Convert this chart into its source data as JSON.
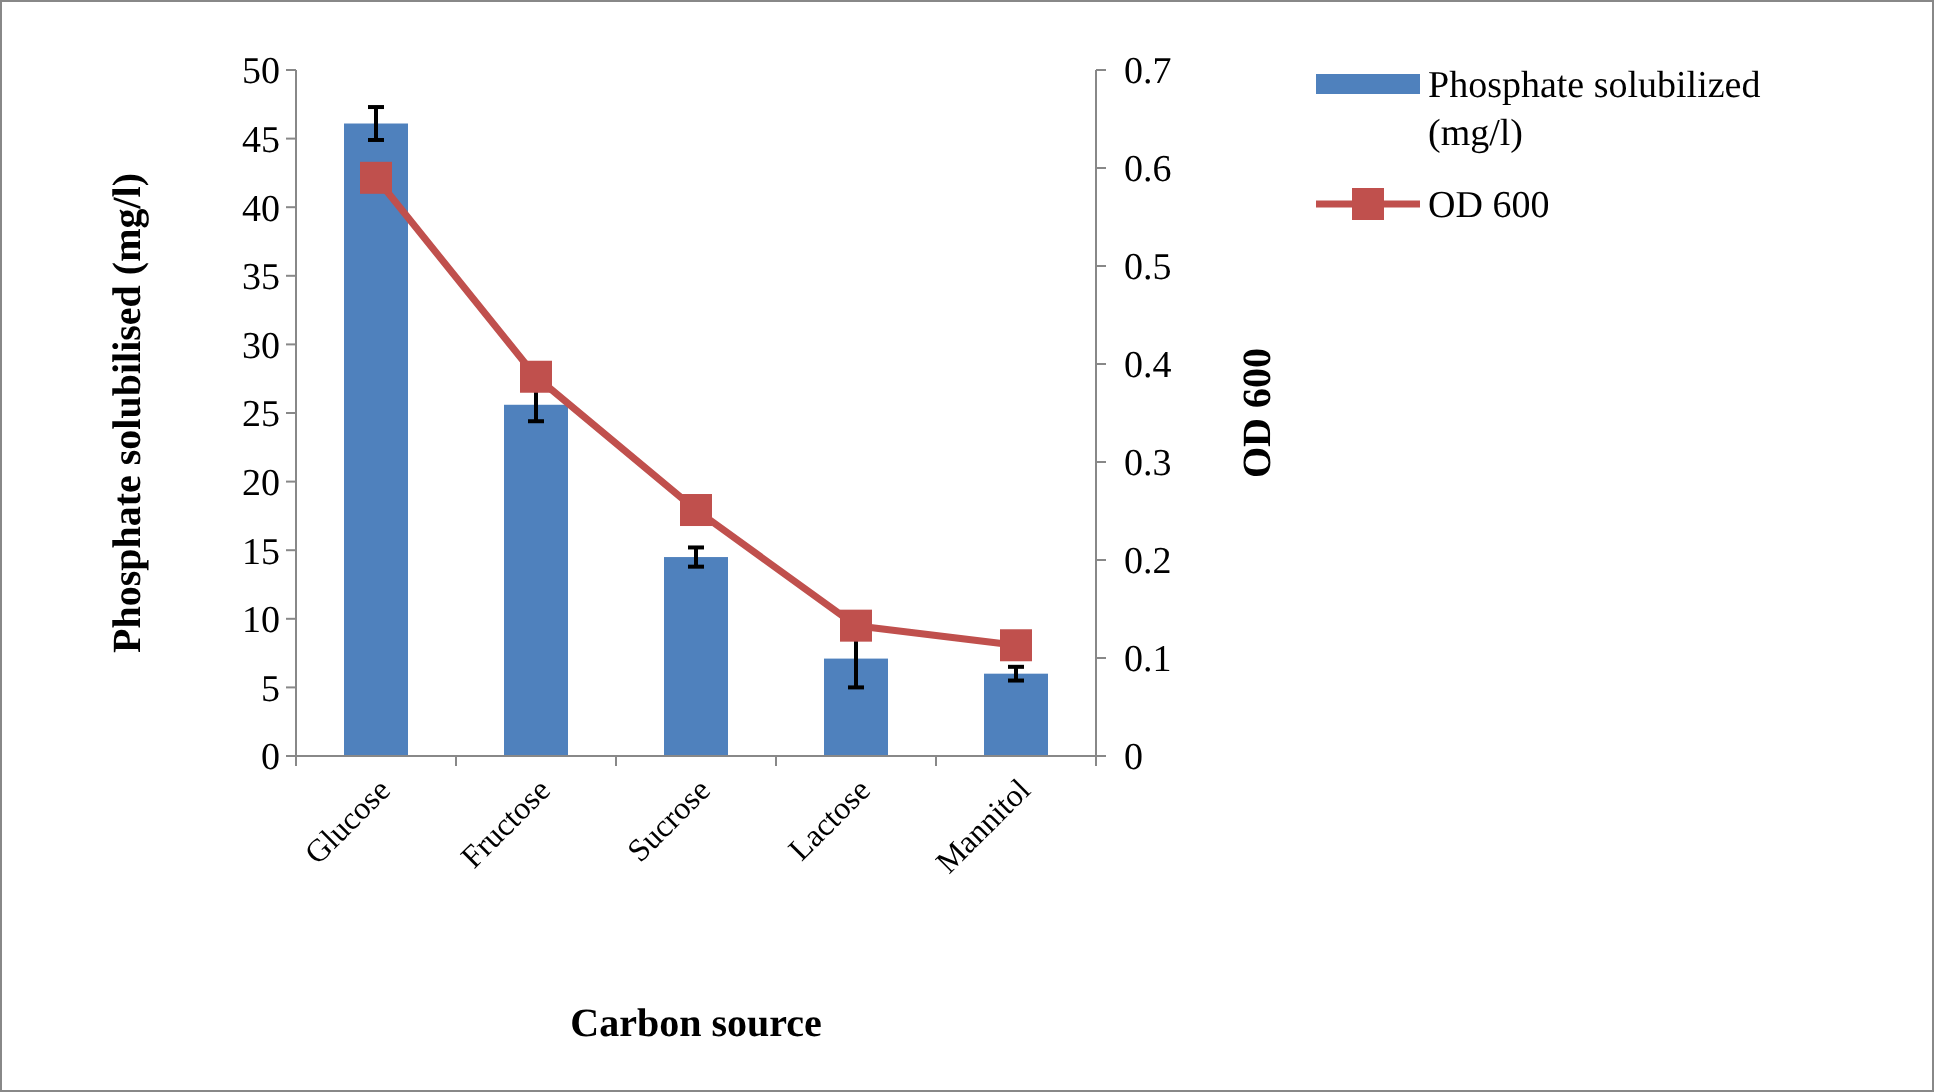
{
  "chart_data": {
    "type": "bar",
    "xlabel": "Carbon source",
    "ylabel": "Phosphate solubilised (mg/l)",
    "y2label": "OD 600",
    "categories": [
      "Glucose",
      "Fructose",
      "Sucrose",
      "Lactose",
      "Mannitol"
    ],
    "series": [
      {
        "name": "Phosphate solubilized (mg/l)",
        "color": "#4f81bd",
        "values": [
          46.1,
          25.6,
          14.5,
          7.1,
          6.0
        ],
        "errors": [
          1.2,
          1.2,
          0.7,
          2.1,
          0.5
        ]
      },
      {
        "name": "OD 600",
        "type": "line",
        "axis": "y2",
        "color": "#c0504d",
        "marker": "square",
        "values": [
          0.59,
          0.387,
          0.251,
          0.133,
          0.113
        ]
      }
    ],
    "ylim": [
      0,
      50
    ],
    "yticks": [
      0,
      5,
      10,
      15,
      20,
      25,
      30,
      35,
      40,
      45,
      50
    ],
    "y2lim": [
      0,
      0.7
    ],
    "y2ticks": [
      0,
      0.1,
      0.2,
      0.3,
      0.4,
      0.5,
      0.6,
      0.7
    ],
    "grid": false,
    "legend": "top right"
  }
}
